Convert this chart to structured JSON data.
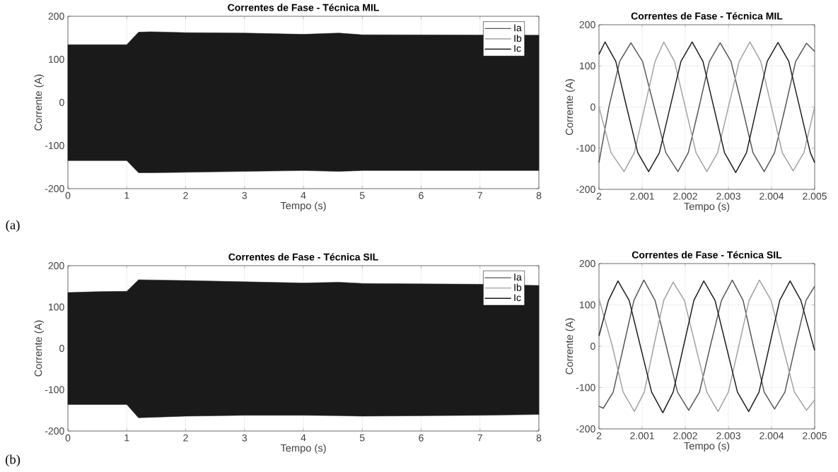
{
  "chart_data": [
    {
      "type": "line",
      "title": "Correntes de Fase - Técnica MIL",
      "xlabel": "Tempo (s)",
      "ylabel": "Corrente (A)",
      "xlim": [
        0,
        8
      ],
      "ylim": [
        -200,
        200
      ],
      "xticks": [
        0,
        1,
        2,
        3,
        4,
        5,
        6,
        7,
        8
      ],
      "yticks": [
        -200,
        -100,
        0,
        100,
        200
      ],
      "grid": true,
      "legend": "top right",
      "annotations": [
        "(a)"
      ],
      "series": [
        {
          "name": "Ia",
          "color": "#555555"
        },
        {
          "name": "Ib",
          "color": "#a0a0a0"
        },
        {
          "name": "Ic",
          "color": "#1a1a1a",
          "x": [
            0,
            1.0,
            1.2,
            1.4,
            2,
            3,
            4,
            4.6,
            5,
            8
          ],
          "values": [
            null,
            null,
            null,
            null,
            null,
            null,
            null,
            null,
            null,
            null
          ],
          "upper": [
            134,
            134,
            163,
            164,
            162,
            161,
            158,
            161,
            157,
            156
          ],
          "lower": [
            -135,
            -135,
            -163,
            -163,
            -162,
            -160,
            -158,
            -160,
            -158,
            -158
          ]
        }
      ]
    },
    {
      "type": "line",
      "title": "Correntes de Fase - Técnica MIL",
      "xlabel": "Tempo (s)",
      "ylabel": "Corrente (A)",
      "xlim": [
        2,
        2.005
      ],
      "ylim": [
        -200,
        200
      ],
      "xticks": [
        2,
        2.001,
        2.002,
        2.003,
        2.004,
        2.005
      ],
      "yticks": [
        -200,
        -100,
        0,
        100,
        200
      ],
      "grid": true,
      "series": [
        {
          "color": "#555555",
          "x": [
            2.0,
            2.00023,
            2.00048,
            2.00074,
            2.00101,
            2.00128,
            2.00155,
            2.00183,
            2.00207,
            2.00232,
            2.00256,
            2.00281,
            2.00306,
            2.00332,
            2.00357,
            2.00383,
            2.00407,
            2.00432,
            2.00456,
            2.00481,
            2.005
          ],
          "values": [
            -135,
            0,
            111,
            156,
            111,
            0,
            -111,
            -157,
            -111,
            0,
            111,
            156,
            111,
            0,
            -111,
            -157,
            -111,
            0,
            111,
            155,
            135
          ]
        },
        {
          "color": "#a0a0a0",
          "x": [
            2.0,
            2.00028,
            2.00058,
            2.00082,
            2.00106,
            2.0013,
            2.0015,
            2.00175,
            2.002,
            2.00225,
            2.0025,
            2.00275,
            2.003,
            2.00325,
            2.0035,
            2.00375,
            2.004,
            2.00425,
            2.0045,
            2.00475,
            2.005
          ],
          "values": [
            0,
            -111,
            -157,
            -111,
            0,
            111,
            158,
            111,
            0,
            -111,
            -157,
            -111,
            0,
            111,
            158,
            111,
            0,
            -111,
            -155,
            -111,
            0
          ]
        },
        {
          "color": "#1a1a1a",
          "x": [
            2.0,
            2.00014,
            2.00039,
            2.00064,
            2.0009,
            2.00115,
            2.0014,
            2.00165,
            2.0019,
            2.00216,
            2.00241,
            2.00266,
            2.00291,
            2.00317,
            2.00342,
            2.00366,
            2.0039,
            2.00415,
            2.0044,
            2.00465,
            2.0049,
            2.005
          ],
          "values": [
            128,
            158,
            111,
            0,
            -111,
            -157,
            -111,
            0,
            111,
            158,
            111,
            0,
            -111,
            -159,
            -111,
            0,
            111,
            157,
            111,
            0,
            -111,
            -135
          ]
        }
      ]
    },
    {
      "type": "line",
      "title": "Correntes de Fase - Técnica SIL",
      "xlabel": "Tempo (s)",
      "ylabel": "Corrente (A)",
      "xlim": [
        0,
        8
      ],
      "ylim": [
        -200,
        200
      ],
      "xticks": [
        0,
        1,
        2,
        3,
        4,
        5,
        6,
        7,
        8
      ],
      "yticks": [
        -200,
        -100,
        0,
        100,
        200
      ],
      "grid": true,
      "legend": "top right",
      "annotations": [
        "(b)"
      ],
      "series": [
        {
          "name": "Ia",
          "color": "#555555"
        },
        {
          "name": "Ib",
          "color": "#a0a0a0"
        },
        {
          "name": "Ic",
          "color": "#1a1a1a",
          "x": [
            0,
            0.5,
            1.0,
            1.2,
            2,
            3,
            4,
            4.6,
            5,
            6,
            7,
            8
          ],
          "values": [
            null,
            null,
            null,
            null,
            null,
            null,
            null,
            null,
            null,
            null,
            null,
            null
          ],
          "upper": [
            135,
            137,
            138,
            166,
            164,
            161,
            158,
            160,
            157,
            156,
            155,
            152
          ],
          "lower": [
            -136,
            -136,
            -136,
            -168,
            -164,
            -162,
            -162,
            -163,
            -164,
            -163,
            -162,
            -160
          ]
        }
      ]
    },
    {
      "type": "line",
      "title": "Correntes de Fase - Técnica SIL",
      "xlabel": "Tempo (s)",
      "ylabel": "Corrente (A)",
      "xlim": [
        2,
        2.005
      ],
      "ylim": [
        -200,
        200
      ],
      "xticks": [
        2,
        2.001,
        2.002,
        2.003,
        2.004,
        2.005
      ],
      "yticks": [
        -200,
        -100,
        0,
        100,
        200
      ],
      "grid": true,
      "series": [
        {
          "color": "#555555",
          "x": [
            2.0,
            2.0001,
            2.00033,
            2.00057,
            2.00081,
            2.00104,
            2.0013,
            2.00156,
            2.00182,
            2.00208,
            2.00233,
            2.00258,
            2.00284,
            2.00309,
            2.00334,
            2.00358,
            2.00383,
            2.00407,
            2.00431,
            2.00455,
            2.0048,
            2.005
          ],
          "values": [
            -145,
            -150,
            -111,
            0,
            111,
            160,
            111,
            0,
            -111,
            -155,
            -111,
            0,
            111,
            160,
            111,
            0,
            -111,
            -152,
            -111,
            0,
            111,
            145
          ]
        },
        {
          "color": "#a0a0a0",
          "x": [
            2.0,
            2.00031,
            2.00056,
            2.00082,
            2.00105,
            2.00127,
            2.0015,
            2.00172,
            2.00198,
            2.00224,
            2.0025,
            2.00276,
            2.003,
            2.00324,
            2.00348,
            2.00372,
            2.00399,
            2.00426,
            2.00453,
            2.00481,
            2.005
          ],
          "values": [
            115,
            0,
            -111,
            -158,
            -111,
            0,
            111,
            155,
            111,
            0,
            -111,
            -158,
            -111,
            0,
            111,
            160,
            111,
            0,
            -111,
            -155,
            -130
          ]
        },
        {
          "color": "#1a1a1a",
          "x": [
            2.0,
            2.00022,
            2.00044,
            2.0007,
            2.00096,
            2.00122,
            2.00148,
            2.00172,
            2.00196,
            2.0022,
            2.00243,
            2.00269,
            2.00295,
            2.00321,
            2.00347,
            2.00371,
            2.00395,
            2.00419,
            2.00443,
            2.00468,
            2.005
          ],
          "values": [
            25,
            111,
            158,
            111,
            0,
            -111,
            -161,
            -111,
            0,
            111,
            158,
            111,
            0,
            -111,
            -158,
            -111,
            0,
            111,
            158,
            111,
            -10
          ]
        }
      ]
    }
  ]
}
